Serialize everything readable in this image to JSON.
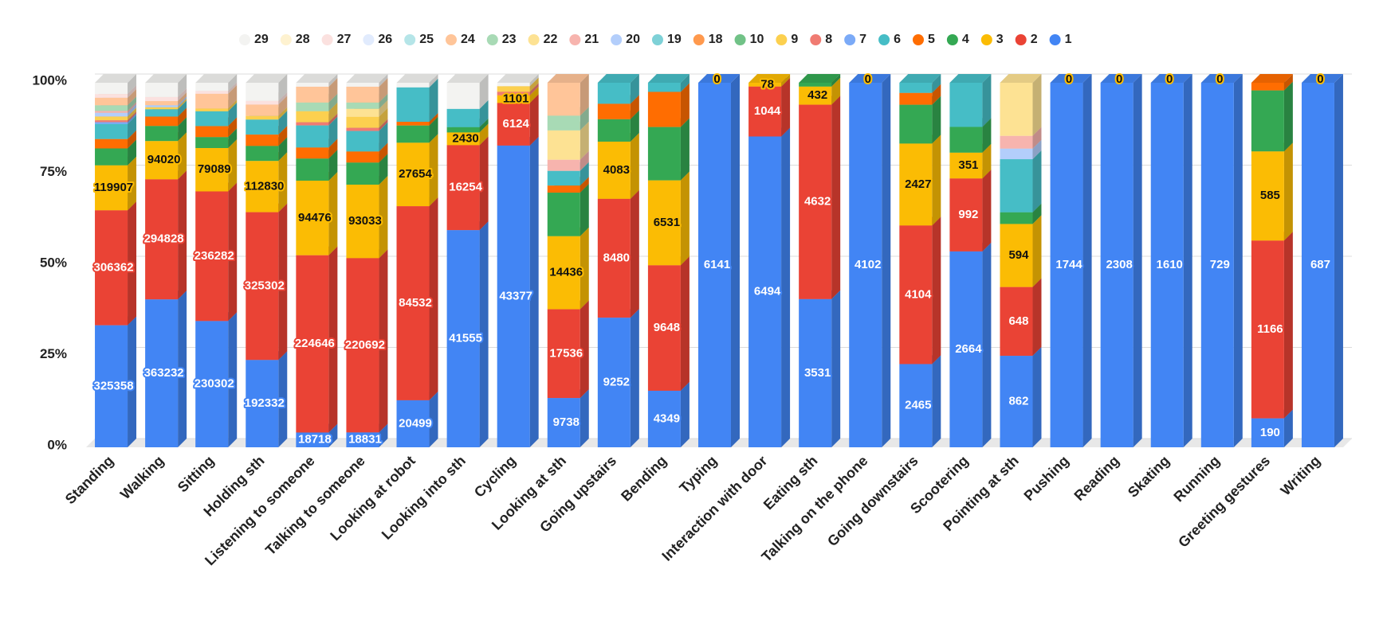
{
  "chart_data": {
    "type": "bar",
    "stacking": "percent",
    "categories": [
      "Standing",
      "Walking",
      "Sitting",
      "Holding sth",
      "Listening to someone",
      "Talking to someone",
      "Looking at robot",
      "Looking into sth",
      "Cycling",
      "Looking at sth",
      "Going upstairs",
      "Bending",
      "Typing",
      "Interaction with door",
      "Eating sth",
      "Talking on the phone",
      "Going downstairs",
      "Scootering",
      "Pointing at sth",
      "Pushing",
      "Reading",
      "Skating",
      "Running",
      "Greeting gestures",
      "Writing"
    ],
    "ylim": [
      0,
      100
    ],
    "yticks": [
      {
        "value": 0,
        "label": "0%"
      },
      {
        "value": 25,
        "label": "25%"
      },
      {
        "value": 50,
        "label": "50%"
      },
      {
        "value": 75,
        "label": "75%"
      },
      {
        "value": 100,
        "label": "100%"
      }
    ],
    "grid": true,
    "legend": "top",
    "series": [
      {
        "name": "1",
        "color": "#4285f4",
        "data_labels": true,
        "values": [
          325358,
          363232,
          230302,
          192332,
          18718,
          18831,
          20499,
          41555,
          43377,
          9738,
          9252,
          4349,
          6141,
          6494,
          3531,
          4102,
          2465,
          2664,
          862,
          1744,
          2308,
          1610,
          729,
          190,
          687
        ]
      },
      {
        "name": "2",
        "color": "#ea4335",
        "data_labels": true,
        "values": [
          306362,
          294828,
          236282,
          325302,
          224646,
          220692,
          84532,
          16254,
          6124,
          17536,
          8480,
          9648,
          null,
          1044,
          4632,
          null,
          4104,
          992,
          648,
          null,
          null,
          null,
          null,
          1166,
          null
        ]
      },
      {
        "name": "3",
        "color": "#fbbc04",
        "data_labels": true,
        "values": [
          119907,
          94020,
          79089,
          112830,
          94476,
          93033,
          27654,
          2430,
          1101,
          14436,
          4083,
          6531,
          0,
          78,
          432,
          0,
          2427,
          351,
          594,
          0,
          0,
          0,
          0,
          585,
          0
        ]
      },
      {
        "name": "4",
        "color": "#34a853",
        "values": [
          45000,
          37000,
          20000,
          33000,
          28000,
          28000,
          7500,
          1000,
          0,
          8600,
          1600,
          4100,
          0,
          0,
          90,
          0,
          1150,
          350,
          110,
          0,
          0,
          0,
          0,
          400,
          0
        ]
      },
      {
        "name": "5",
        "color": "#ff6d01",
        "values": [
          25000,
          23000,
          20000,
          25000,
          14000,
          14000,
          1600,
          0,
          0,
          1400,
          1100,
          2700,
          0,
          0,
          0,
          0,
          350,
          0,
          0,
          0,
          0,
          0,
          0,
          50,
          0
        ]
      },
      {
        "name": "6",
        "color": "#46bdc6",
        "values": [
          40000,
          18000,
          27000,
          33000,
          28000,
          26000,
          15000,
          3500,
          0,
          2900,
          1500,
          700,
          0,
          0,
          0,
          0,
          300,
          600,
          500,
          0,
          0,
          0,
          0,
          0,
          0
        ]
      },
      {
        "name": "7",
        "color": "#7baaf7",
        "values": [
          5000,
          0,
          0,
          0,
          0,
          0,
          0,
          0,
          0,
          0,
          0,
          0,
          0,
          0,
          0,
          0,
          0,
          0,
          0,
          0,
          0,
          0,
          0,
          0,
          0
        ]
      },
      {
        "name": "8",
        "color": "#f07b72",
        "values": [
          5000,
          0,
          0,
          0,
          4000,
          4000,
          0,
          0,
          500,
          0,
          0,
          0,
          0,
          0,
          0,
          0,
          0,
          0,
          0,
          0,
          0,
          0,
          0,
          0,
          0
        ]
      },
      {
        "name": "9",
        "color": "#fcd04f",
        "values": [
          10000,
          5000,
          5000,
          8000,
          14000,
          14000,
          0,
          0,
          800,
          0,
          0,
          0,
          0,
          0,
          0,
          0,
          0,
          0,
          0,
          0,
          0,
          0,
          0,
          0,
          0
        ]
      },
      {
        "name": "10",
        "color": "#71c287",
        "values": [
          0,
          0,
          0,
          0,
          0,
          0,
          0,
          0,
          0,
          0,
          0,
          0,
          0,
          0,
          0,
          0,
          0,
          0,
          0,
          0,
          0,
          0,
          0,
          0,
          0
        ]
      },
      {
        "name": "18",
        "color": "#ff994d",
        "values": [
          0,
          0,
          0,
          0,
          0,
          0,
          0,
          0,
          0,
          0,
          0,
          0,
          0,
          0,
          0,
          0,
          0,
          0,
          0,
          0,
          0,
          0,
          0,
          0,
          0
        ]
      },
      {
        "name": "19",
        "color": "#7ed1d7",
        "values": [
          0,
          0,
          0,
          0,
          0,
          0,
          0,
          0,
          0,
          0,
          0,
          0,
          0,
          0,
          0,
          0,
          0,
          0,
          0,
          0,
          0,
          0,
          0,
          0,
          0
        ]
      },
      {
        "name": "20",
        "color": "#b3cefb",
        "values": [
          10000,
          5000,
          0,
          0,
          0,
          0,
          0,
          0,
          0,
          0,
          0,
          0,
          0,
          0,
          0,
          0,
          0,
          0,
          100,
          0,
          0,
          0,
          0,
          0,
          0
        ]
      },
      {
        "name": "21",
        "color": "#f7b4ae",
        "values": [
          5000,
          0,
          0,
          0,
          0,
          0,
          0,
          0,
          0,
          2200,
          0,
          0,
          0,
          0,
          0,
          0,
          0,
          0,
          120,
          0,
          0,
          0,
          0,
          0,
          0
        ]
      },
      {
        "name": "22",
        "color": "#fde293",
        "values": [
          0,
          0,
          0,
          0,
          0,
          10000,
          0,
          0,
          0,
          5800,
          0,
          0,
          0,
          0,
          0,
          0,
          0,
          0,
          500,
          0,
          0,
          0,
          0,
          0,
          0
        ]
      },
      {
        "name": "23",
        "color": "#a8dab5",
        "values": [
          15000,
          0,
          0,
          0,
          11000,
          8000,
          0,
          0,
          0,
          2900,
          0,
          0,
          0,
          0,
          0,
          0,
          0,
          0,
          0,
          0,
          0,
          0,
          0,
          0,
          0
        ]
      },
      {
        "name": "24",
        "color": "#ffc599",
        "values": [
          20000,
          10000,
          27000,
          25000,
          20000,
          20000,
          0,
          0,
          0,
          6500,
          0,
          0,
          0,
          0,
          0,
          0,
          0,
          0,
          0,
          0,
          0,
          0,
          0,
          0,
          0
        ]
      },
      {
        "name": "25",
        "color": "#b5e5e8",
        "values": [
          0,
          0,
          0,
          0,
          0,
          0,
          0,
          0,
          0,
          0,
          0,
          0,
          0,
          0,
          0,
          0,
          0,
          0,
          0,
          0,
          0,
          0,
          0,
          0,
          0
        ]
      },
      {
        "name": "26",
        "color": "#e1ebfd",
        "values": [
          0,
          0,
          0,
          0,
          0,
          0,
          0,
          0,
          0,
          0,
          0,
          0,
          0,
          0,
          0,
          0,
          0,
          0,
          0,
          0,
          0,
          0,
          0,
          0,
          0
        ]
      },
      {
        "name": "27",
        "color": "#fbe1df",
        "values": [
          10000,
          10000,
          5000,
          8000,
          0,
          0,
          0,
          0,
          0,
          0,
          0,
          0,
          0,
          0,
          0,
          0,
          0,
          0,
          0,
          0,
          0,
          0,
          0,
          0,
          0
        ]
      },
      {
        "name": "28",
        "color": "#fef2d0",
        "values": [
          0,
          0,
          0,
          0,
          0,
          0,
          0,
          0,
          0,
          0,
          0,
          0,
          0,
          0,
          0,
          0,
          0,
          0,
          0,
          0,
          0,
          0,
          0,
          0,
          0
        ]
      },
      {
        "name": "29",
        "color": "#f3f3f1",
        "values": [
          30000,
          35000,
          15000,
          40000,
          5000,
          5000,
          2000,
          5000,
          500,
          0,
          0,
          0,
          0,
          0,
          0,
          0,
          0,
          0,
          0,
          0,
          0,
          0,
          0,
          0,
          0
        ]
      }
    ]
  }
}
